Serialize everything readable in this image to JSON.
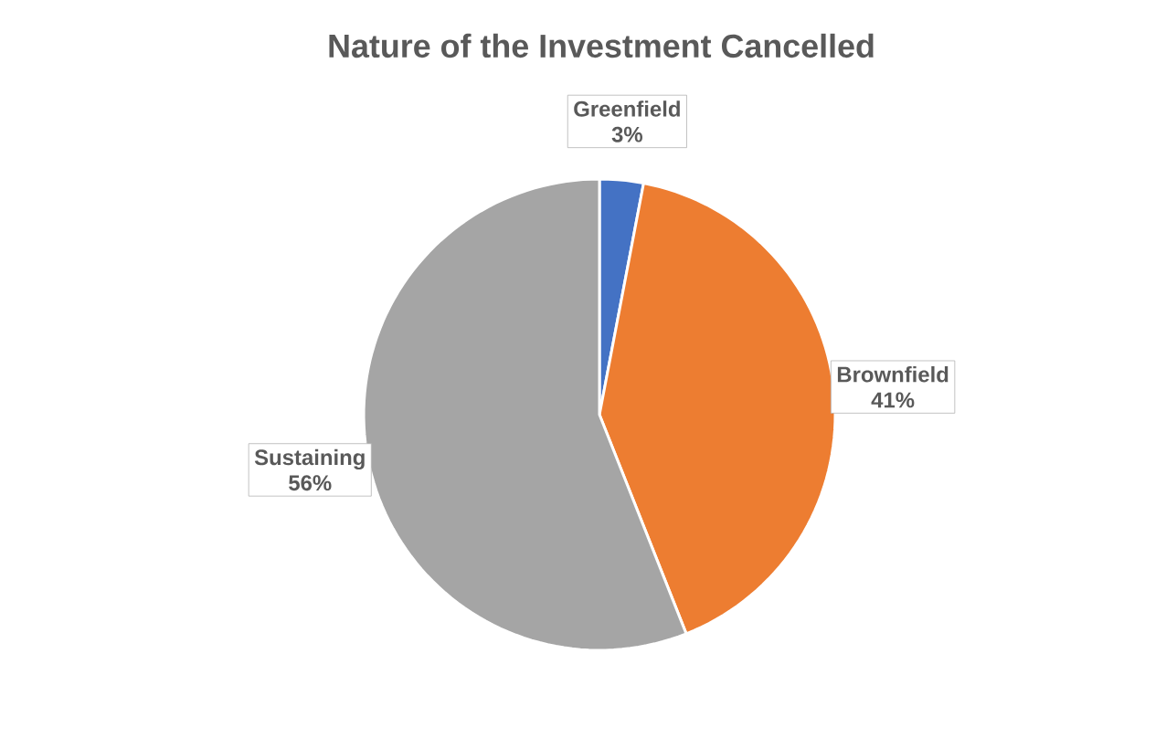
{
  "chart_data": {
    "type": "pie",
    "title": "Nature of the Investment Cancelled",
    "categories": [
      "Greenfield",
      "Brownfield",
      "Sustaining"
    ],
    "values": [
      3,
      41,
      56
    ],
    "colors": [
      "#4472c4",
      "#ed7d31",
      "#a5a5a5"
    ],
    "value_labels": [
      "3%",
      "41%",
      "56%"
    ]
  }
}
